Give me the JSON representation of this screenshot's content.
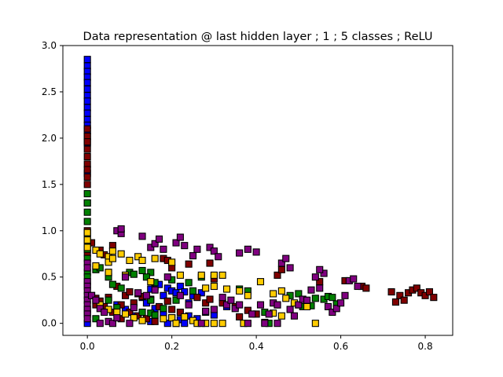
{
  "chart_data": {
    "type": "scatter",
    "title": "Data representation @ last hidden layer ; 1 ; 5 classes ; ReLU",
    "xlabel": "",
    "ylabel": "",
    "xlim": [
      -0.058,
      0.865
    ],
    "ylim": [
      -0.13,
      3.0
    ],
    "x_ticks": [
      0.0,
      0.2,
      0.4,
      0.6,
      0.8
    ],
    "x_tick_labels": [
      "0.0",
      "0.2",
      "0.4",
      "0.6",
      "0.8"
    ],
    "y_ticks": [
      0.0,
      0.5,
      1.0,
      1.5,
      2.0,
      2.5,
      3.0
    ],
    "y_tick_labels": [
      "0.0",
      "0.5",
      "1.0",
      "1.5",
      "2.0",
      "2.5",
      "3.0"
    ],
    "grid": false,
    "legend": "none",
    "marker": "square",
    "series": [
      {
        "color": "#0000ff",
        "points": [
          [
            0.0,
            2.85
          ],
          [
            0.0,
            2.78
          ],
          [
            0.0,
            2.72
          ],
          [
            0.0,
            2.66
          ],
          [
            0.0,
            2.6
          ],
          [
            0.0,
            2.53
          ],
          [
            0.0,
            2.46
          ],
          [
            0.0,
            2.4
          ],
          [
            0.0,
            2.33
          ],
          [
            0.0,
            2.27
          ],
          [
            0.0,
            2.2
          ],
          [
            0.0,
            2.14
          ],
          [
            0.0,
            2.08
          ],
          [
            0.0,
            2.02
          ],
          [
            0.0,
            1.95
          ],
          [
            0.0,
            1.62
          ],
          [
            0.0,
            1.3
          ],
          [
            0.0,
            0.42
          ],
          [
            0.0,
            0.12
          ],
          [
            0.0,
            0.0
          ],
          [
            0.16,
            0.4
          ],
          [
            0.17,
            0.42
          ],
          [
            0.19,
            0.38
          ],
          [
            0.2,
            0.35
          ],
          [
            0.22,
            0.4
          ],
          [
            0.23,
            0.34
          ],
          [
            0.15,
            0.37
          ],
          [
            0.18,
            0.3
          ],
          [
            0.21,
            0.33
          ],
          [
            0.25,
            0.3
          ],
          [
            0.27,
            0.33
          ],
          [
            0.24,
            0.22
          ],
          [
            0.13,
            0.28
          ],
          [
            0.14,
            0.22
          ],
          [
            0.16,
            0.16
          ],
          [
            0.18,
            0.1
          ],
          [
            0.2,
            0.06
          ],
          [
            0.22,
            0.04
          ],
          [
            0.24,
            0.08
          ],
          [
            0.26,
            0.05
          ],
          [
            0.28,
            0.12
          ],
          [
            0.3,
            0.09
          ],
          [
            0.07,
            0.2
          ],
          [
            0.09,
            0.15
          ],
          [
            0.11,
            0.08
          ],
          [
            0.15,
            0.02
          ],
          [
            0.19,
            0.0
          ],
          [
            0.21,
            0.0
          ],
          [
            0.23,
            0.0
          ],
          [
            0.33,
            0.18
          ],
          [
            0.05,
            0.55
          ]
        ]
      },
      {
        "color": "#800000",
        "points": [
          [
            0.0,
            2.1
          ],
          [
            0.0,
            2.02
          ],
          [
            0.0,
            1.96
          ],
          [
            0.0,
            1.88
          ],
          [
            0.0,
            1.8
          ],
          [
            0.0,
            1.72
          ],
          [
            0.0,
            1.66
          ],
          [
            0.0,
            1.58
          ],
          [
            0.0,
            1.5
          ],
          [
            0.0,
            1.0
          ],
          [
            0.0,
            0.76
          ],
          [
            0.01,
            0.87
          ],
          [
            0.03,
            0.79
          ],
          [
            0.04,
            0.74
          ],
          [
            0.06,
            0.84
          ],
          [
            0.01,
            0.3
          ],
          [
            0.02,
            0.27
          ],
          [
            0.03,
            0.24
          ],
          [
            0.05,
            0.28
          ],
          [
            0.02,
            0.2
          ],
          [
            0.04,
            0.18
          ],
          [
            0.06,
            0.12
          ],
          [
            0.08,
            0.2
          ],
          [
            0.09,
            0.3
          ],
          [
            0.11,
            0.22
          ],
          [
            0.13,
            0.29
          ],
          [
            0.15,
            0.26
          ],
          [
            0.17,
            0.18
          ],
          [
            0.1,
            0.12
          ],
          [
            0.12,
            0.08
          ],
          [
            0.14,
            0.05
          ],
          [
            0.16,
            0.02
          ],
          [
            0.19,
            0.24
          ],
          [
            0.2,
            0.15
          ],
          [
            0.22,
            0.12
          ],
          [
            0.18,
            0.7
          ],
          [
            0.19,
            0.68
          ],
          [
            0.2,
            0.6
          ],
          [
            0.26,
            0.28
          ],
          [
            0.28,
            0.22
          ],
          [
            0.29,
            0.26
          ],
          [
            0.24,
            0.64
          ],
          [
            0.3,
            0.48
          ],
          [
            0.29,
            0.65
          ],
          [
            0.32,
            0.22
          ],
          [
            0.35,
            0.18
          ],
          [
            0.38,
            0.14
          ],
          [
            0.36,
            0.07
          ],
          [
            0.4,
            0.1
          ],
          [
            0.45,
            0.52
          ],
          [
            0.46,
            0.58
          ],
          [
            0.55,
            0.45
          ],
          [
            0.61,
            0.46
          ],
          [
            0.65,
            0.4
          ],
          [
            0.66,
            0.38
          ],
          [
            0.72,
            0.34
          ],
          [
            0.74,
            0.3
          ],
          [
            0.73,
            0.23
          ],
          [
            0.75,
            0.25
          ],
          [
            0.76,
            0.33
          ],
          [
            0.77,
            0.36
          ],
          [
            0.78,
            0.38
          ],
          [
            0.79,
            0.33
          ],
          [
            0.8,
            0.3
          ],
          [
            0.81,
            0.34
          ],
          [
            0.82,
            0.28
          ],
          [
            0.1,
            0.34
          ],
          [
            0.12,
            0.32
          ],
          [
            0.07,
            0.4
          ],
          [
            0.08,
            0.05
          ]
        ]
      },
      {
        "color": "#008000",
        "points": [
          [
            0.0,
            1.4
          ],
          [
            0.0,
            1.3
          ],
          [
            0.0,
            1.2
          ],
          [
            0.0,
            1.1
          ],
          [
            0.0,
            0.98
          ],
          [
            0.0,
            0.92
          ],
          [
            0.0,
            0.86
          ],
          [
            0.0,
            0.8
          ],
          [
            0.0,
            0.7
          ],
          [
            0.0,
            0.55
          ],
          [
            0.0,
            0.5
          ],
          [
            0.02,
            0.58
          ],
          [
            0.03,
            0.6
          ],
          [
            0.05,
            0.5
          ],
          [
            0.06,
            0.42
          ],
          [
            0.08,
            0.38
          ],
          [
            0.1,
            0.55
          ],
          [
            0.11,
            0.53
          ],
          [
            0.13,
            0.57
          ],
          [
            0.15,
            0.55
          ],
          [
            0.14,
            0.5
          ],
          [
            0.16,
            0.44
          ],
          [
            0.2,
            0.47
          ],
          [
            0.24,
            0.44
          ],
          [
            0.27,
            0.5
          ],
          [
            0.05,
            0.25
          ],
          [
            0.07,
            0.17
          ],
          [
            0.13,
            0.12
          ],
          [
            0.15,
            0.11
          ],
          [
            0.16,
            0.09
          ],
          [
            0.18,
            0.16
          ],
          [
            0.21,
            0.25
          ],
          [
            0.36,
            0.37
          ],
          [
            0.38,
            0.35
          ],
          [
            0.42,
            0.12
          ],
          [
            0.43,
            0.0
          ],
          [
            0.45,
            0.2
          ],
          [
            0.48,
            0.3
          ],
          [
            0.5,
            0.32
          ],
          [
            0.51,
            0.18
          ],
          [
            0.53,
            0.19
          ],
          [
            0.54,
            0.27
          ],
          [
            0.56,
            0.26
          ],
          [
            0.57,
            0.29
          ],
          [
            0.58,
            0.28
          ],
          [
            0.59,
            0.21
          ],
          [
            0.02,
            0.05
          ],
          [
            0.15,
            0.25
          ],
          [
            0.25,
            0.35
          ]
        ]
      },
      {
        "color": "#ffcc00",
        "points": [
          [
            0.0,
            0.98
          ],
          [
            0.0,
            0.9
          ],
          [
            0.0,
            0.82
          ],
          [
            0.02,
            0.79
          ],
          [
            0.03,
            0.75
          ],
          [
            0.05,
            0.72
          ],
          [
            0.06,
            0.78
          ],
          [
            0.08,
            0.75
          ],
          [
            0.05,
            0.66
          ],
          [
            0.06,
            0.7
          ],
          [
            0.1,
            0.68
          ],
          [
            0.12,
            0.72
          ],
          [
            0.13,
            0.68
          ],
          [
            0.16,
            0.7
          ],
          [
            0.2,
            0.66
          ],
          [
            0.05,
            0.55
          ],
          [
            0.09,
            0.52
          ],
          [
            0.22,
            0.52
          ],
          [
            0.27,
            0.52
          ],
          [
            0.3,
            0.52
          ],
          [
            0.32,
            0.52
          ],
          [
            0.28,
            0.38
          ],
          [
            0.3,
            0.4
          ],
          [
            0.33,
            0.37
          ],
          [
            0.36,
            0.35
          ],
          [
            0.38,
            0.3
          ],
          [
            0.41,
            0.45
          ],
          [
            0.44,
            0.32
          ],
          [
            0.46,
            0.35
          ],
          [
            0.47,
            0.27
          ],
          [
            0.49,
            0.22
          ],
          [
            0.5,
            0.2
          ],
          [
            0.52,
            0.18
          ],
          [
            0.03,
            0.2
          ],
          [
            0.05,
            0.15
          ],
          [
            0.07,
            0.12
          ],
          [
            0.09,
            0.1
          ],
          [
            0.11,
            0.06
          ],
          [
            0.13,
            0.03
          ],
          [
            0.18,
            0.05
          ],
          [
            0.2,
            0.06
          ],
          [
            0.21,
            0.0
          ],
          [
            0.23,
            0.07
          ],
          [
            0.25,
            0.03
          ],
          [
            0.26,
            0.0
          ],
          [
            0.28,
            0.0
          ],
          [
            0.3,
            0.0
          ],
          [
            0.32,
            0.0
          ],
          [
            0.37,
            0.0
          ],
          [
            0.42,
            0.01
          ],
          [
            0.44,
            0.11
          ],
          [
            0.46,
            0.08
          ],
          [
            0.54,
            0.0
          ],
          [
            0.02,
            0.62
          ],
          [
            0.15,
            0.45
          ]
        ]
      },
      {
        "color": "#800080",
        "points": [
          [
            0.0,
            0.65
          ],
          [
            0.0,
            0.6
          ],
          [
            0.0,
            0.45
          ],
          [
            0.0,
            0.4
          ],
          [
            0.0,
            0.35
          ],
          [
            0.0,
            0.3
          ],
          [
            0.0,
            0.25
          ],
          [
            0.0,
            0.2
          ],
          [
            0.0,
            0.15
          ],
          [
            0.0,
            0.1
          ],
          [
            0.0,
            0.05
          ],
          [
            0.01,
            0.3
          ],
          [
            0.02,
            0.25
          ],
          [
            0.03,
            0.16
          ],
          [
            0.03,
            0.0
          ],
          [
            0.04,
            0.12
          ],
          [
            0.05,
            0.02
          ],
          [
            0.06,
            0.0
          ],
          [
            0.07,
            0.06
          ],
          [
            0.07,
            1.0
          ],
          [
            0.08,
            0.97
          ],
          [
            0.08,
            1.02
          ],
          [
            0.09,
            0.5
          ],
          [
            0.1,
            0.0
          ],
          [
            0.11,
            0.17
          ],
          [
            0.12,
            0.33
          ],
          [
            0.13,
            0.94
          ],
          [
            0.14,
            0.3
          ],
          [
            0.15,
            0.82
          ],
          [
            0.16,
            0.36
          ],
          [
            0.16,
            0.86
          ],
          [
            0.17,
            0.91
          ],
          [
            0.18,
            0.8
          ],
          [
            0.19,
            0.5
          ],
          [
            0.21,
            0.87
          ],
          [
            0.22,
            0.93
          ],
          [
            0.22,
            0.3
          ],
          [
            0.23,
            0.84
          ],
          [
            0.24,
            0.2
          ],
          [
            0.25,
            0.73
          ],
          [
            0.26,
            0.8
          ],
          [
            0.27,
            0.0
          ],
          [
            0.28,
            0.13
          ],
          [
            0.29,
            0.82
          ],
          [
            0.3,
            0.78
          ],
          [
            0.3,
            0.15
          ],
          [
            0.31,
            0.72
          ],
          [
            0.32,
            0.28
          ],
          [
            0.33,
            0.2
          ],
          [
            0.34,
            0.25
          ],
          [
            0.35,
            0.16
          ],
          [
            0.36,
            0.76
          ],
          [
            0.36,
            0.2
          ],
          [
            0.38,
            0.8
          ],
          [
            0.39,
            0.1
          ],
          [
            0.4,
            0.77
          ],
          [
            0.41,
            0.2
          ],
          [
            0.42,
            0.0
          ],
          [
            0.43,
            0.1
          ],
          [
            0.44,
            0.22
          ],
          [
            0.45,
            0.2
          ],
          [
            0.46,
            0.65
          ],
          [
            0.47,
            0.7
          ],
          [
            0.48,
            0.15
          ],
          [
            0.49,
            0.08
          ],
          [
            0.5,
            0.2
          ],
          [
            0.51,
            0.26
          ],
          [
            0.52,
            0.25
          ],
          [
            0.53,
            0.36
          ],
          [
            0.54,
            0.5
          ],
          [
            0.55,
            0.38
          ],
          [
            0.57,
            0.18
          ],
          [
            0.58,
            0.12
          ],
          [
            0.59,
            0.16
          ],
          [
            0.6,
            0.22
          ],
          [
            0.61,
            0.3
          ],
          [
            0.62,
            0.46
          ],
          [
            0.63,
            0.48
          ],
          [
            0.64,
            0.4
          ],
          [
            0.56,
            0.54
          ],
          [
            0.55,
            0.58
          ],
          [
            0.48,
            0.6
          ],
          [
            0.45,
            0.0
          ],
          [
            0.38,
            0.0
          ]
        ]
      }
    ]
  }
}
